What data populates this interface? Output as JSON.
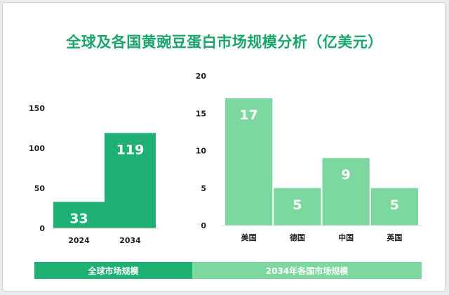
{
  "title": "全球及各国黄豌豆蛋白市场规模分析（亿美元）",
  "chart_data": [
    {
      "type": "bar",
      "categories": [
        "2024",
        "2034"
      ],
      "values": [
        33,
        119
      ],
      "ylim": [
        0,
        150
      ],
      "yticks": [
        0,
        50,
        100,
        150
      ],
      "bar_color": "#1fb074",
      "label": "全球市场规模"
    },
    {
      "type": "bar",
      "categories": [
        "美国",
        "德国",
        "中国",
        "英国"
      ],
      "values": [
        17,
        5,
        9,
        5
      ],
      "ylim": [
        0,
        20
      ],
      "yticks": [
        0,
        5,
        10,
        15,
        20
      ],
      "bar_color": "#7dd8a0",
      "label": "2034年各国市场规模"
    }
  ],
  "colors": {
    "title": "#1aa56b",
    "footer_left": "#1fb074",
    "footer_right": "#7dd8a0"
  }
}
